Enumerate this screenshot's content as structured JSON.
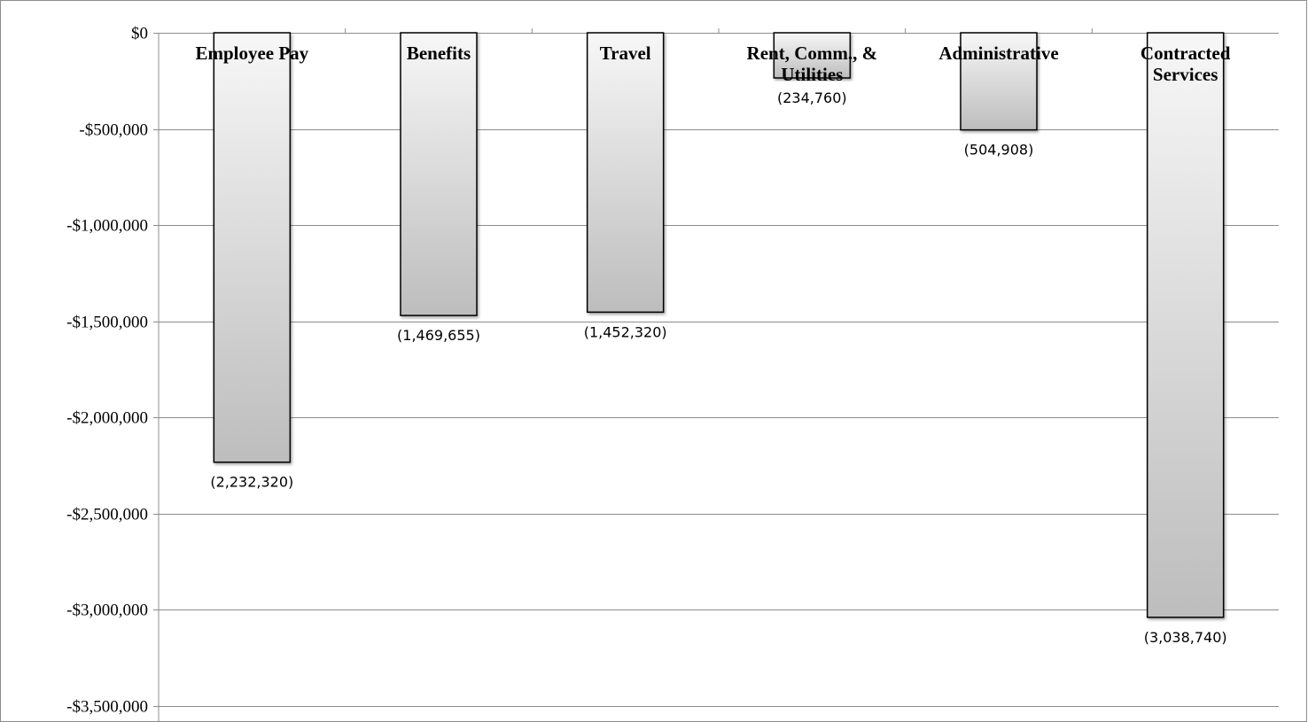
{
  "chart_data": {
    "type": "bar",
    "title": "",
    "xlabel": "",
    "ylabel": "",
    "categories": [
      [
        "Employee Pay"
      ],
      [
        "Benefits"
      ],
      [
        "Travel"
      ],
      [
        "Rent, Comm., &",
        "Utilities"
      ],
      [
        "Administrative"
      ],
      [
        "Contracted",
        "Services"
      ]
    ],
    "values": [
      -2232320,
      -1469655,
      -1452320,
      -234760,
      -504908,
      -3038740
    ],
    "data_labels": [
      "(2,232,320)",
      "(1,469,655)",
      "(1,452,320)",
      "(234,760)",
      "(504,908)",
      "(3,038,740)"
    ],
    "ylim": [
      -3500000,
      0
    ],
    "yticks": [
      0,
      -500000,
      -1000000,
      -1500000,
      -2000000,
      -2500000,
      -3000000,
      -3500000
    ],
    "ytick_labels": [
      "$0",
      "-$500,000",
      "-$1,000,000",
      "-$1,500,000",
      "-$2,000,000",
      "-$2,500,000",
      "-$3,000,000",
      "-$3,500,000"
    ],
    "grid": true,
    "legend": "none",
    "colors": {
      "bar_light": "#f7f7f7",
      "bar_dark": "#bdbdbd",
      "bar_edge": "#000000",
      "grid": "#8c8c8c",
      "frame": "#8c8c8c"
    }
  }
}
